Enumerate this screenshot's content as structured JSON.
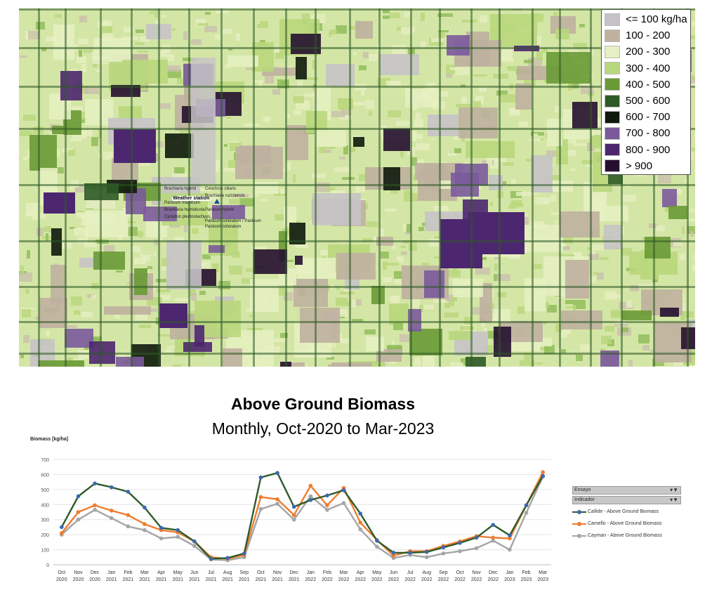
{
  "map": {
    "legend": [
      {
        "label": "<= 100 kg/ha",
        "color": "#c6c3c6"
      },
      {
        "label": "100 - 200",
        "color": "#bfb0a0"
      },
      {
        "label": "200 - 300",
        "color": "#e6efc1"
      },
      {
        "label": "300 - 400",
        "color": "#b9d77c"
      },
      {
        "label": "400 - 500",
        "color": "#6a9a36"
      },
      {
        "label": "500 - 600",
        "color": "#2d5a26"
      },
      {
        "label": "600 - 700",
        "color": "#0e1a0c"
      },
      {
        "label": "700 - 800",
        "color": "#7b5a9c"
      },
      {
        "label": "800 - 900",
        "color": "#4d2670"
      },
      {
        "label": "> 900",
        "color": "#25102f"
      }
    ],
    "station": {
      "weather_label": "Weather station",
      "labels": [
        "Brachiaria hybrid",
        "Cenchrus ciliaris",
        "Brachiaria ruziziensis",
        "Panicum maximum",
        "Brachiaria humidicola",
        "Panicum hybrid",
        "Cynodon plectostachyus",
        "Panicum coloratum / Panicum",
        "Panicum coloratum"
      ]
    }
  },
  "chart_data": {
    "type": "line",
    "title": "Above Ground Biomass",
    "subtitle": "Monthly, Oct-2020 to Mar-2023",
    "ylabel": "Biomass [kg/ha]",
    "ylim": [
      0,
      700
    ],
    "yticks": [
      0,
      100,
      200,
      300,
      400,
      500,
      600,
      700
    ],
    "grid": true,
    "legend_position": "right",
    "categories": [
      [
        "Oct",
        "2020"
      ],
      [
        "Nov",
        "2020"
      ],
      [
        "Dec",
        "2020"
      ],
      [
        "Jan",
        "2021"
      ],
      [
        "Feb",
        "2021"
      ],
      [
        "Mar",
        "2021"
      ],
      [
        "Apr",
        "2021"
      ],
      [
        "May",
        "2021"
      ],
      [
        "Jun",
        "2021"
      ],
      [
        "Jul",
        "2021"
      ],
      [
        "Aug",
        "2021"
      ],
      [
        "Sep",
        "2021"
      ],
      [
        "Oct",
        "2021"
      ],
      [
        "Nov",
        "2021"
      ],
      [
        "Dec",
        "2021"
      ],
      [
        "Jan",
        "2022"
      ],
      [
        "Feb",
        "2022"
      ],
      [
        "Mar",
        "2022"
      ],
      [
        "Apr",
        "2022"
      ],
      [
        "May",
        "2022"
      ],
      [
        "Jun",
        "2022"
      ],
      [
        "Jul",
        "2022"
      ],
      [
        "Aug",
        "2022"
      ],
      [
        "Sep",
        "2022"
      ],
      [
        "Oct",
        "2022"
      ],
      [
        "Nov",
        "2022"
      ],
      [
        "Dec",
        "2022"
      ],
      [
        "Jan",
        "2023"
      ],
      [
        "Feb",
        "2023"
      ],
      [
        "Mar",
        "2023"
      ]
    ],
    "series": [
      {
        "name": "Callide - Above Ground Biomass",
        "color": "#2e5b2a",
        "marker": "#3b69b0",
        "values": [
          250,
          455,
          540,
          515,
          485,
          380,
          245,
          230,
          155,
          40,
          45,
          75,
          580,
          610,
          385,
          430,
          460,
          495,
          340,
          160,
          80,
          80,
          85,
          115,
          145,
          180,
          265,
          195,
          395,
          590
        ]
      },
      {
        "name": "Camello - Above Ground Biomass",
        "color": "#ed7d31",
        "marker": "#ed7d31",
        "values": [
          210,
          350,
          395,
          360,
          330,
          270,
          230,
          215,
          155,
          50,
          40,
          65,
          450,
          435,
          330,
          525,
          395,
          510,
          280,
          165,
          60,
          90,
          90,
          125,
          155,
          190,
          180,
          175,
          395,
          615
        ]
      },
      {
        "name": "Cayman - Above Ground Biomass",
        "color": "#a5a5a5",
        "marker": "#a5a5a5",
        "values": [
          200,
          300,
          365,
          310,
          255,
          230,
          175,
          185,
          125,
          35,
          30,
          50,
          370,
          405,
          300,
          455,
          365,
          410,
          235,
          120,
          45,
          65,
          50,
          75,
          90,
          110,
          160,
          100,
          345,
          585
        ]
      }
    ],
    "slicer": {
      "ensayo": "Ensayo",
      "indicador": "Indicador"
    }
  }
}
